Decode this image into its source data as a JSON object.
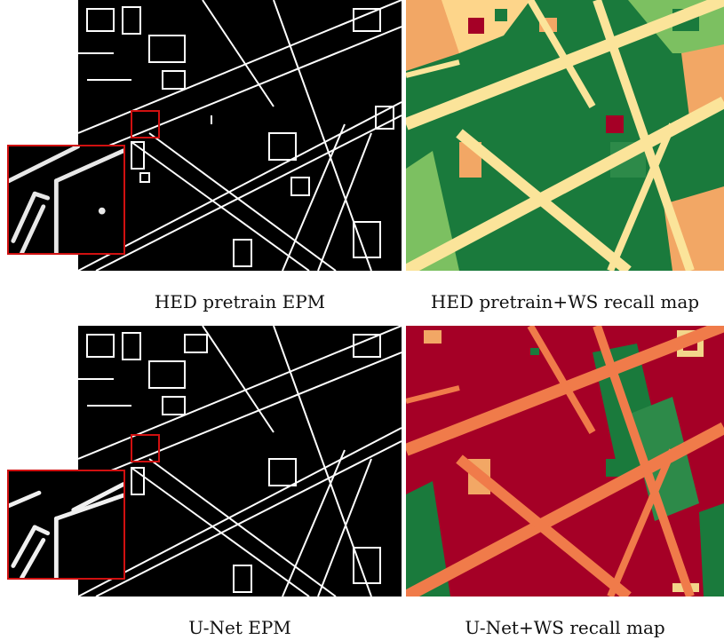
{
  "figure": {
    "panels": [
      {
        "id": "hed-epm",
        "caption": "HED pretrain EPM",
        "kind": "edge-map"
      },
      {
        "id": "hed-ws-recall",
        "caption": "HED pretrain+WS recall map",
        "kind": "recall-map",
        "palette": "green"
      },
      {
        "id": "unet-epm",
        "caption": "U-Net EPM",
        "kind": "edge-map"
      },
      {
        "id": "unet-ws-recall",
        "caption": "U-Net+WS recall map",
        "kind": "recall-map",
        "palette": "red"
      }
    ],
    "colors": {
      "highlight": "#d01010",
      "edge_background": "#000000",
      "edge_line": "#ffffff",
      "recall_high": "#1a7a3c",
      "recall_mid": "#7cc061",
      "recall_low": "#a50026",
      "road_hed": "#fbe49a",
      "road_unet": "#f07b4a"
    }
  }
}
